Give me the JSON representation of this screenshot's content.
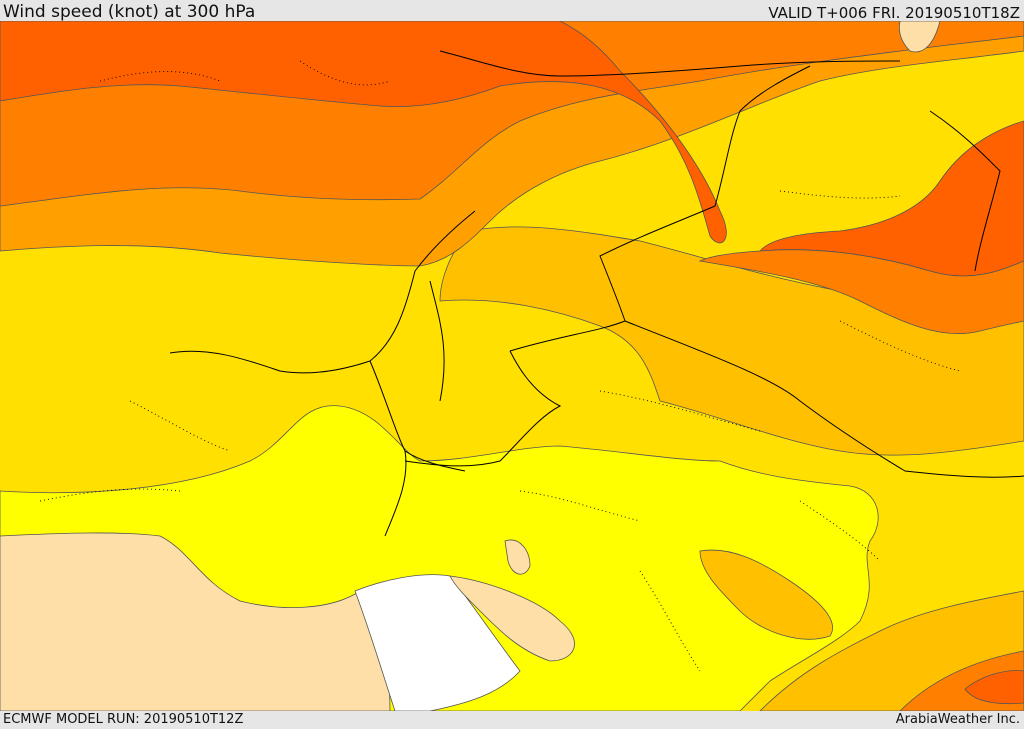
{
  "header": {
    "title": "Wind speed (knot) at 300 hPa",
    "valid": "VALID T+006 FRI. 20190510T18Z"
  },
  "footer": {
    "model_run": "ECMWF MODEL RUN: 20190510T12Z",
    "credit": "ArabiaWeather Inc."
  },
  "colors": {
    "band_wheat": "#ffdfa8",
    "band_white": "#ffffff",
    "band_yellow": "#ffff00",
    "band_gold": "#ffe000",
    "band_amber": "#ffc000",
    "band_orange_light": "#ffa000",
    "band_orange": "#ff8000",
    "band_red_orange": "#ff6000",
    "contour": "#555555",
    "border": "#000000"
  }
}
